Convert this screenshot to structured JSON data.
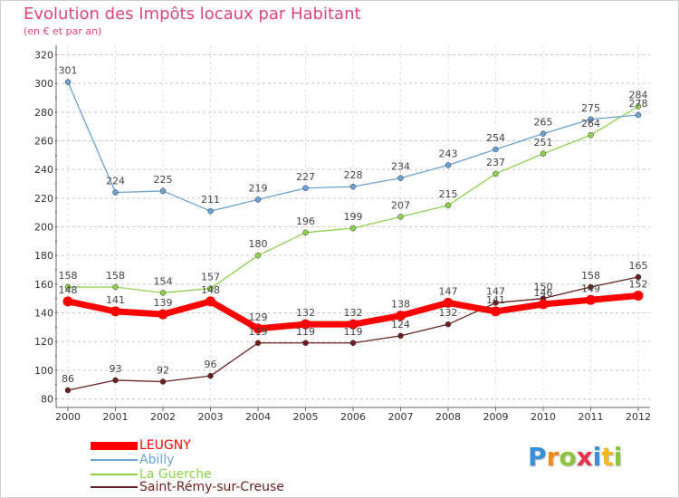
{
  "chart_data": {
    "type": "line",
    "title": "Evolution des Impôts locaux par Habitant",
    "subtitle": "(en € et par an)",
    "xlabel": "",
    "ylabel": "",
    "ylim": [
      80,
      320
    ],
    "ytick_step": 20,
    "grid": "horizontal dashed",
    "legend_position": "bottom-left",
    "x": [
      "2000",
      "2001",
      "2002",
      "2003",
      "2004",
      "2005",
      "2006",
      "2007",
      "2008",
      "2009",
      "2010",
      "2011",
      "2012"
    ],
    "series": [
      {
        "name": "Saint-Rémy-sur-Creuse",
        "color": "#6b1f1f",
        "values": [
          86,
          93,
          92,
          96,
          119,
          119,
          119,
          124,
          132,
          147,
          150,
          158,
          165
        ]
      },
      {
        "name": "La Guerche",
        "color": "#8fd14f",
        "values": [
          158,
          158,
          154,
          157,
          180,
          196,
          199,
          207,
          215,
          237,
          251,
          264,
          284
        ]
      },
      {
        "name": "Abilly",
        "color": "#6aa2d4",
        "values": [
          301,
          224,
          225,
          211,
          219,
          227,
          228,
          234,
          243,
          254,
          265,
          275,
          278
        ]
      },
      {
        "name": "LEUGNY",
        "color": "#ff0000",
        "values": [
          148,
          141,
          139,
          148,
          129,
          132,
          132,
          138,
          147,
          141,
          146,
          149,
          152
        ]
      }
    ]
  },
  "legend": [
    {
      "name": "LEUGNY",
      "color": "#ff0000"
    },
    {
      "name": "Abilly",
      "color": "#6aa2d4"
    },
    {
      "name": "La Guerche",
      "color": "#8fd14f"
    },
    {
      "name": "Saint-Rémy-sur-Creuse",
      "color": "#6b1f1f"
    }
  ],
  "logo": {
    "letters": [
      "P",
      "r",
      "o",
      "x",
      "i",
      "t",
      "i"
    ],
    "colors": [
      "#3a8fd9",
      "#f08a1c",
      "#8cc63f",
      "#e8324a",
      "#3a8fd9",
      "#f0b81c",
      "#8cc63f"
    ]
  }
}
